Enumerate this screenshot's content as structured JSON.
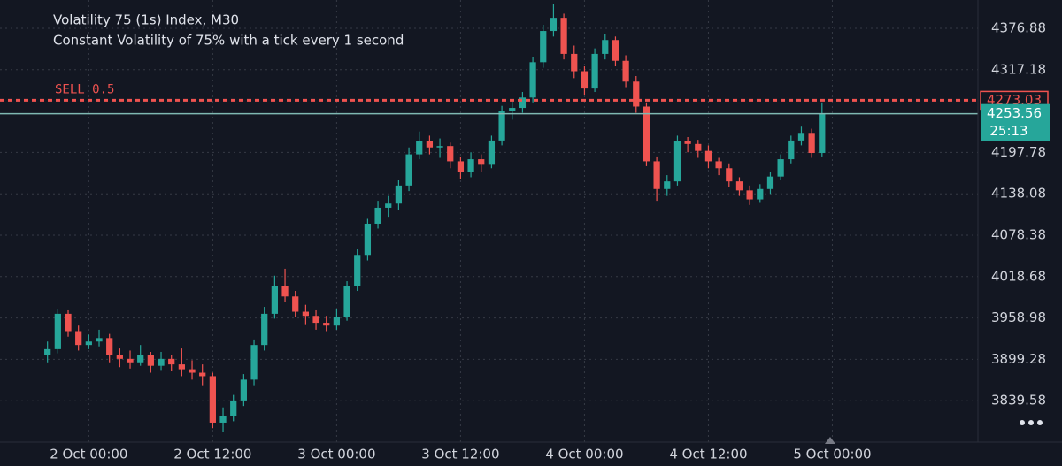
{
  "chart_data": {
    "type": "candlestick",
    "title": "Volatility 75 (1s) Index, M30",
    "subtitle": "Constant Volatility of 75% with a tick every 1 second",
    "up_color": "#26a69a",
    "down_color": "#ef5350",
    "grid": true,
    "ylim": [
      3779.9,
      4417.7
    ],
    "yticks": [
      4376.88,
      4317.18,
      4197.78,
      4138.08,
      4078.38,
      4018.68,
      3958.98,
      3899.28,
      3839.58
    ],
    "xlim": [
      -8.6,
      86.1
    ],
    "xticks": [
      {
        "value": 0,
        "label": "2 Oct 00:00"
      },
      {
        "value": 12,
        "label": "2 Oct 12:00"
      },
      {
        "value": 24,
        "label": "3 Oct 00:00"
      },
      {
        "value": 36,
        "label": "3 Oct 12:00"
      },
      {
        "value": 48,
        "label": "4 Oct 00:00"
      },
      {
        "value": 60,
        "label": "4 Oct 12:00"
      },
      {
        "value": 72,
        "label": "5 Oct 00:00"
      }
    ],
    "order": {
      "label": "SELL 0.5",
      "value": 4273.03
    },
    "current_price": 4253.56,
    "countdown": "25:13",
    "x": [
      -4,
      -3,
      -2,
      -1,
      0,
      1,
      2,
      3,
      4,
      5,
      6,
      7,
      8,
      9,
      10,
      11,
      12,
      13,
      14,
      15,
      16,
      17,
      18,
      19,
      20,
      21,
      22,
      23,
      24,
      25,
      26,
      27,
      28,
      29,
      30,
      31,
      32,
      33,
      34,
      35,
      36,
      37,
      38,
      39,
      40,
      41,
      42,
      43,
      44,
      45,
      46,
      47,
      48,
      49,
      50,
      51,
      52,
      53,
      54,
      55,
      56,
      57,
      58,
      59,
      60,
      61,
      62,
      63,
      64,
      65,
      66,
      67,
      68,
      69,
      70,
      71
    ],
    "candles": [
      [
        3905,
        3925,
        3895,
        3914
      ],
      [
        3914,
        3972,
        3908,
        3965
      ],
      [
        3965,
        3970,
        3932,
        3940
      ],
      [
        3940,
        3948,
        3912,
        3920
      ],
      [
        3920,
        3935,
        3914,
        3925
      ],
      [
        3925,
        3942,
        3918,
        3930
      ],
      [
        3930,
        3936,
        3895,
        3905
      ],
      [
        3905,
        3915,
        3888,
        3900
      ],
      [
        3900,
        3912,
        3886,
        3895
      ],
      [
        3895,
        3920,
        3890,
        3905
      ],
      [
        3905,
        3910,
        3880,
        3890
      ],
      [
        3890,
        3910,
        3884,
        3900
      ],
      [
        3900,
        3906,
        3882,
        3892
      ],
      [
        3892,
        3915,
        3875,
        3885
      ],
      [
        3885,
        3898,
        3870,
        3880
      ],
      [
        3880,
        3892,
        3862,
        3875
      ],
      [
        3875,
        3880,
        3800,
        3808
      ],
      [
        3808,
        3830,
        3795,
        3818
      ],
      [
        3818,
        3848,
        3810,
        3840
      ],
      [
        3840,
        3878,
        3832,
        3870
      ],
      [
        3870,
        3928,
        3862,
        3920
      ],
      [
        3920,
        3975,
        3912,
        3965
      ],
      [
        3965,
        4020,
        3958,
        4005
      ],
      [
        4005,
        4030,
        3982,
        3990
      ],
      [
        3990,
        3998,
        3960,
        3968
      ],
      [
        3968,
        3978,
        3950,
        3962
      ],
      [
        3962,
        3970,
        3942,
        3952
      ],
      [
        3952,
        3962,
        3940,
        3948
      ],
      [
        3948,
        3972,
        3942,
        3960
      ],
      [
        3960,
        4012,
        3955,
        4005
      ],
      [
        4005,
        4058,
        3998,
        4050
      ],
      [
        4050,
        4102,
        4042,
        4095
      ],
      [
        4095,
        4128,
        4088,
        4118
      ],
      [
        4118,
        4135,
        4105,
        4124
      ],
      [
        4124,
        4158,
        4115,
        4150
      ],
      [
        4150,
        4205,
        4142,
        4195
      ],
      [
        4195,
        4228,
        4188,
        4214
      ],
      [
        4214,
        4222,
        4195,
        4205
      ],
      [
        4205,
        4218,
        4190,
        4207
      ],
      [
        4207,
        4212,
        4175,
        4185
      ],
      [
        4185,
        4192,
        4160,
        4169
      ],
      [
        4169,
        4198,
        4162,
        4188
      ],
      [
        4188,
        4195,
        4170,
        4180
      ],
      [
        4180,
        4222,
        4175,
        4215
      ],
      [
        4215,
        4265,
        4208,
        4258
      ],
      [
        4258,
        4272,
        4245,
        4262
      ],
      [
        4262,
        4285,
        4255,
        4277
      ],
      [
        4277,
        4335,
        4270,
        4328
      ],
      [
        4328,
        4382,
        4320,
        4373
      ],
      [
        4373,
        4412,
        4365,
        4392
      ],
      [
        4392,
        4398,
        4332,
        4340
      ],
      [
        4340,
        4352,
        4305,
        4315
      ],
      [
        4315,
        4322,
        4280,
        4290
      ],
      [
        4290,
        4348,
        4285,
        4340
      ],
      [
        4340,
        4368,
        4332,
        4360
      ],
      [
        4360,
        4365,
        4322,
        4330
      ],
      [
        4330,
        4338,
        4292,
        4300
      ],
      [
        4300,
        4308,
        4255,
        4264
      ],
      [
        4264,
        4270,
        4178,
        4185
      ],
      [
        4185,
        4192,
        4128,
        4145
      ],
      [
        4145,
        4165,
        4135,
        4156
      ],
      [
        4156,
        4222,
        4150,
        4214
      ],
      [
        4214,
        4220,
        4198,
        4210
      ],
      [
        4210,
        4216,
        4190,
        4200
      ],
      [
        4200,
        4208,
        4175,
        4185
      ],
      [
        4185,
        4190,
        4165,
        4175
      ],
      [
        4175,
        4182,
        4148,
        4156
      ],
      [
        4156,
        4162,
        4135,
        4143
      ],
      [
        4143,
        4150,
        4122,
        4130
      ],
      [
        4130,
        4152,
        4125,
        4145
      ],
      [
        4145,
        4170,
        4138,
        4163
      ],
      [
        4163,
        4195,
        4158,
        4188
      ],
      [
        4188,
        4222,
        4182,
        4215
      ],
      [
        4215,
        4235,
        4208,
        4226
      ],
      [
        4226,
        4232,
        4190,
        4197
      ],
      [
        4197,
        4270,
        4192,
        4253.56
      ]
    ]
  }
}
